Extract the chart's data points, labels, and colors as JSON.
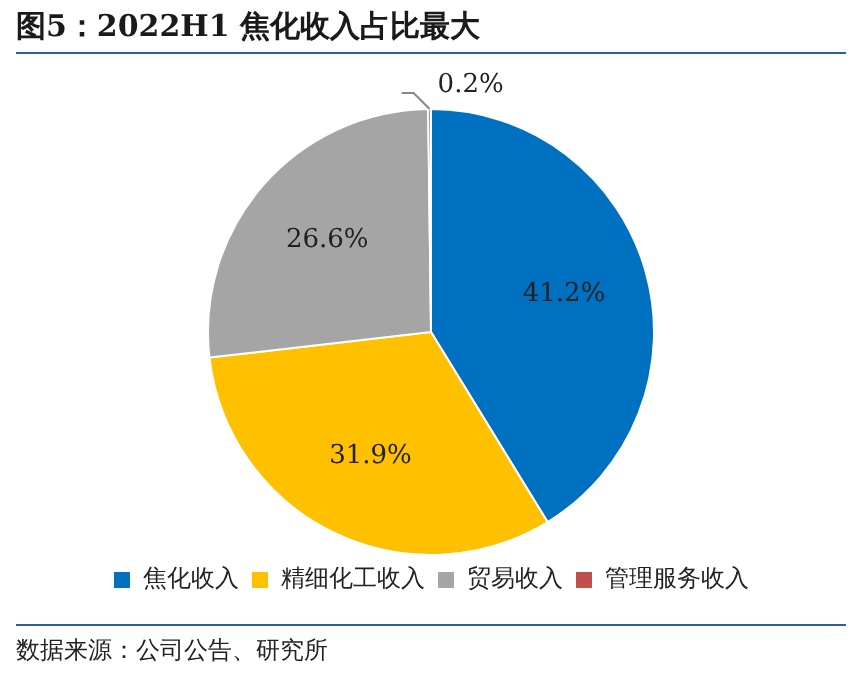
{
  "chart_data": {
    "type": "pie",
    "title": "图5：2022H1 焦化收入占比最大",
    "categories": [
      "焦化收入",
      "精细化工收入",
      "贸易收入",
      "管理服务收入"
    ],
    "values": [
      41.2,
      31.9,
      26.6,
      0.2
    ],
    "value_labels": [
      "41.2%",
      "31.9%",
      "26.6%",
      "0.2%"
    ],
    "colors": [
      "#0070c0",
      "#ffc000",
      "#a5a5a5",
      "#c0504d"
    ],
    "legend": "bottom",
    "annotations": [
      "数据来源：公司公告、研究所"
    ]
  }
}
